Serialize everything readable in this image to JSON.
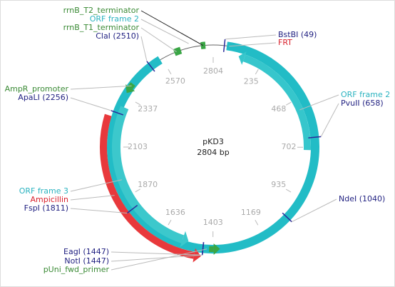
{
  "map": {
    "name": "pKD3",
    "size_label": "2804 bp",
    "scale": [
      235,
      468,
      702,
      935,
      1169,
      1403,
      1636,
      1870,
      2103,
      2337,
      2570,
      2804
    ],
    "labels": [
      "rrnB_T2_terminator",
      "ORF frame 2",
      "rrnB_T1_terminator",
      "ClaI (2510)",
      "BstBI (49)",
      "FRT",
      "ORF frame 2",
      "PvuII (658)",
      "NdeI (1040)",
      "AmpR_promoter",
      "ApaLI (2256)",
      "ORF frame 3",
      "Ampicillin",
      "FspI (1811)",
      "EagI (1447)",
      "NotI (1447)",
      "pUni_fwd_primer"
    ]
  }
}
